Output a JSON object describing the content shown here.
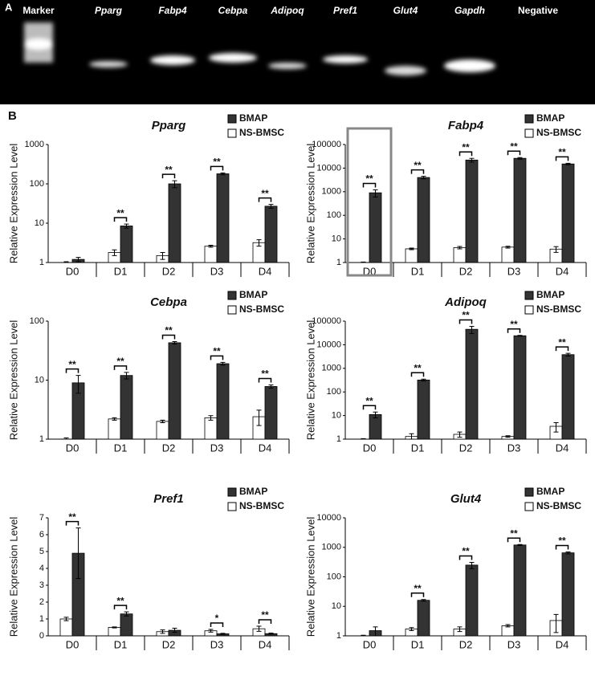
{
  "gel": {
    "panel_label": "A",
    "lanes": [
      "Marker",
      "Pparg",
      "Fabp4",
      "Cebpa",
      "Adipoq",
      "Pref1",
      "Glut4",
      "Gapdh",
      "Negative"
    ]
  },
  "panel_b_label": "B",
  "chart_data": [
    {
      "type": "bar",
      "title": "Pparg",
      "ylabel": "Relative Expression Level",
      "log_scale": true,
      "categories": [
        "D0",
        "D1",
        "D2",
        "D3",
        "D4"
      ],
      "ylim": [
        1,
        1000
      ],
      "yticks": [
        1,
        10,
        100,
        1000
      ],
      "series": [
        {
          "name": "BMAP",
          "color": "#333333",
          "values": [
            1.2,
            8.5,
            100,
            180,
            27
          ],
          "errors": [
            0.15,
            1,
            20,
            10,
            3
          ]
        },
        {
          "name": "NS-BMSC",
          "color": "#ffffff",
          "values": [
            1.0,
            1.8,
            1.5,
            2.6,
            3.2
          ],
          "errors": [
            0.05,
            0.3,
            0.3,
            0.15,
            0.6
          ]
        }
      ],
      "significance": [
        null,
        "**",
        "**",
        "**",
        "**"
      ]
    },
    {
      "type": "bar",
      "title": "Fabp4",
      "ylabel": "Relative Expression Level",
      "log_scale": true,
      "categories": [
        "D0",
        "D1",
        "D2",
        "D3",
        "D4"
      ],
      "ylim": [
        1,
        100000
      ],
      "yticks": [
        1,
        10,
        100,
        1000,
        10000,
        100000
      ],
      "series": [
        {
          "name": "BMAP",
          "color": "#333333",
          "values": [
            900,
            4000,
            22000,
            26000,
            15000
          ],
          "errors": [
            300,
            500,
            4000,
            2000,
            1000
          ]
        },
        {
          "name": "NS-BMSC",
          "color": "#ffffff",
          "values": [
            1.0,
            3.8,
            4.3,
            4.5,
            3.7
          ],
          "errors": [
            0.05,
            0.3,
            0.5,
            0.4,
            1
          ]
        }
      ],
      "significance": [
        "**",
        "**",
        "**",
        "**",
        "**"
      ]
    },
    {
      "type": "bar",
      "title": "Cebpa",
      "ylabel": "Relative Expression Level",
      "log_scale": true,
      "categories": [
        "D0",
        "D1",
        "D2",
        "D3",
        "D4"
      ],
      "ylim": [
        1,
        100
      ],
      "yticks": [
        1,
        10,
        100
      ],
      "series": [
        {
          "name": "BMAP",
          "color": "#333333",
          "values": [
            9,
            12,
            43,
            19,
            7.8
          ],
          "errors": [
            3,
            1.5,
            2,
            1,
            0.5
          ]
        },
        {
          "name": "NS-BMSC",
          "color": "#ffffff",
          "values": [
            1.0,
            2.2,
            2.0,
            2.3,
            2.4
          ],
          "errors": [
            0.05,
            0.1,
            0.1,
            0.2,
            0.7
          ]
        }
      ],
      "significance": [
        "**",
        "**",
        "**",
        "**",
        "**"
      ]
    },
    {
      "type": "bar",
      "title": "Adipoq",
      "ylabel": "Relative Expression Level",
      "log_scale": true,
      "categories": [
        "D0",
        "D1",
        "D2",
        "D3",
        "D4"
      ],
      "ylim": [
        1,
        100000
      ],
      "yticks": [
        1,
        10,
        100,
        1000,
        10000,
        100000
      ],
      "series": [
        {
          "name": "BMAP",
          "color": "#333333",
          "values": [
            11,
            320,
            45000,
            24000,
            3800
          ],
          "errors": [
            3,
            30,
            15000,
            1000,
            500
          ]
        },
        {
          "name": "NS-BMSC",
          "color": "#ffffff",
          "values": [
            1.0,
            1.3,
            1.6,
            1.3,
            3.5
          ],
          "errors": [
            0.05,
            0.4,
            0.4,
            0.1,
            1.5
          ]
        }
      ],
      "significance": [
        "**",
        "**",
        "**",
        "**",
        "**"
      ]
    },
    {
      "type": "bar",
      "title": "Pref1",
      "ylabel": "Relative Expression Level",
      "log_scale": false,
      "categories": [
        "D0",
        "D1",
        "D2",
        "D3",
        "D4"
      ],
      "ylim": [
        0,
        7
      ],
      "yticks": [
        0,
        1,
        2,
        3,
        4,
        5,
        6,
        7
      ],
      "series": [
        {
          "name": "BMAP",
          "color": "#333333",
          "values": [
            4.9,
            1.3,
            0.33,
            0.12,
            0.13
          ],
          "errors": [
            1.5,
            0.12,
            0.12,
            0.03,
            0.03
          ]
        },
        {
          "name": "NS-BMSC",
          "color": "#ffffff",
          "values": [
            1.0,
            0.5,
            0.25,
            0.3,
            0.42
          ],
          "errors": [
            0.1,
            0.03,
            0.1,
            0.08,
            0.15
          ]
        }
      ],
      "significance": [
        "**",
        "**",
        null,
        "*",
        "**"
      ]
    },
    {
      "type": "bar",
      "title": "Glut4",
      "ylabel": "Relative Expression Level",
      "log_scale": true,
      "categories": [
        "D0",
        "D1",
        "D2",
        "D3",
        "D4"
      ],
      "ylim": [
        1,
        10000
      ],
      "yticks": [
        1,
        10,
        100,
        1000,
        10000
      ],
      "series": [
        {
          "name": "BMAP",
          "color": "#333333",
          "values": [
            1.5,
            16,
            250,
            1200,
            650
          ],
          "errors": [
            0.5,
            1,
            60,
            50,
            50
          ]
        },
        {
          "name": "NS-BMSC",
          "color": "#ffffff",
          "values": [
            1.0,
            1.7,
            1.7,
            2.2,
            3.3
          ],
          "errors": [
            0.05,
            0.2,
            0.3,
            0.2,
            2
          ]
        }
      ],
      "significance": [
        null,
        "**",
        "**",
        "**",
        "**"
      ]
    }
  ]
}
